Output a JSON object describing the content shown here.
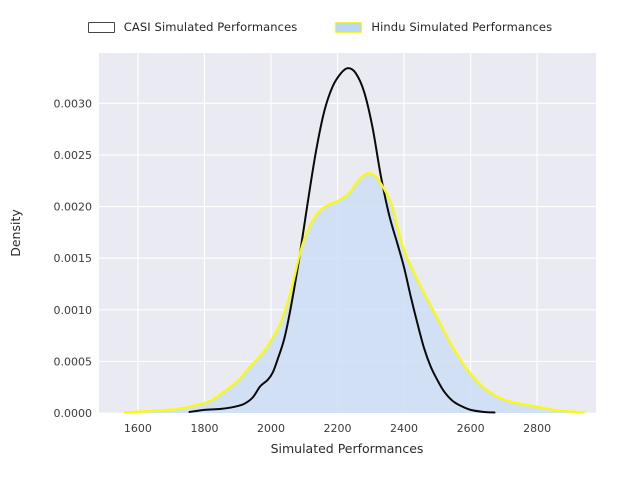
{
  "chart_data": {
    "type": "area",
    "subtype": "kde-density",
    "title": "",
    "xlabel": "Simulated Performances",
    "ylabel": "Density",
    "xlim": [
      1483,
      2977
    ],
    "ylim": [
      0,
      0.003487
    ],
    "x_ticks": [
      1600,
      1800,
      2000,
      2200,
      2400,
      2600,
      2800
    ],
    "y_ticks": [
      0.0,
      0.0005,
      0.001,
      0.0015,
      0.002,
      0.0025,
      0.003
    ],
    "grid": true,
    "legend_position": "top-outside",
    "series": [
      {
        "name": "CASI Simulated Performances",
        "type": "line",
        "line_color": "#0a0a0a",
        "fill_color": "none",
        "legend_swatch_fill": "#ffffff",
        "legend_swatch_border": "#454545",
        "points": [
          [
            1755,
            1e-05
          ],
          [
            1800,
            3e-05
          ],
          [
            1850,
            4e-05
          ],
          [
            1890,
            6e-05
          ],
          [
            1920,
            9e-05
          ],
          [
            1945,
            0.00015
          ],
          [
            1968,
            0.00026
          ],
          [
            1990,
            0.00032
          ],
          [
            2005,
            0.00039
          ],
          [
            2020,
            0.00052
          ],
          [
            2040,
            0.00072
          ],
          [
            2060,
            0.00103
          ],
          [
            2085,
            0.0015
          ],
          [
            2110,
            0.00203
          ],
          [
            2135,
            0.00253
          ],
          [
            2160,
            0.00292
          ],
          [
            2185,
            0.00316
          ],
          [
            2210,
            0.00329
          ],
          [
            2232,
            0.00334
          ],
          [
            2255,
            0.00329
          ],
          [
            2280,
            0.00311
          ],
          [
            2305,
            0.00277
          ],
          [
            2330,
            0.0023
          ],
          [
            2355,
            0.00192
          ],
          [
            2380,
            0.00164
          ],
          [
            2400,
            0.00141
          ],
          [
            2420,
            0.00113
          ],
          [
            2440,
            0.00087
          ],
          [
            2460,
            0.00063
          ],
          [
            2480,
            0.00045
          ],
          [
            2500,
            0.00032
          ],
          [
            2520,
            0.00021
          ],
          [
            2545,
            0.00012
          ],
          [
            2570,
            7e-05
          ],
          [
            2600,
            3e-05
          ],
          [
            2640,
            1e-05
          ],
          [
            2672,
            5e-06
          ]
        ]
      },
      {
        "name": "Hindu Simulated Performances",
        "type": "area",
        "line_color": "#fbfb09",
        "fill_color": "rgba(205,222,246,0.85)",
        "legend_swatch_fill": "#b9d8f7",
        "legend_swatch_border": "#f5f53c",
        "points": [
          [
            1560,
            5e-06
          ],
          [
            1640,
            2e-05
          ],
          [
            1720,
            4e-05
          ],
          [
            1780,
            8e-05
          ],
          [
            1820,
            0.00012
          ],
          [
            1860,
            0.00021
          ],
          [
            1900,
            0.00031
          ],
          [
            1940,
            0.00046
          ],
          [
            1975,
            0.00058
          ],
          [
            2000,
            0.0007
          ],
          [
            2030,
            0.00088
          ],
          [
            2060,
            0.00118
          ],
          [
            2090,
            0.00158
          ],
          [
            2115,
            0.0018
          ],
          [
            2145,
            0.00195
          ],
          [
            2175,
            0.00202
          ],
          [
            2205,
            0.00206
          ],
          [
            2235,
            0.00213
          ],
          [
            2262,
            0.00225
          ],
          [
            2290,
            0.00232
          ],
          [
            2315,
            0.00229
          ],
          [
            2340,
            0.00217
          ],
          [
            2365,
            0.002
          ],
          [
            2390,
            0.00168
          ],
          [
            2410,
            0.0015
          ],
          [
            2448,
            0.00124
          ],
          [
            2500,
            0.00092
          ],
          [
            2550,
            0.00062
          ],
          [
            2600,
            0.00038
          ],
          [
            2650,
            0.00022
          ],
          [
            2700,
            0.00013
          ],
          [
            2750,
            9e-05
          ],
          [
            2800,
            6e-05
          ],
          [
            2850,
            3e-05
          ],
          [
            2900,
            1.5e-05
          ],
          [
            2940,
            5e-06
          ]
        ]
      }
    ]
  },
  "colors": {
    "figure_background": "#ffffff",
    "plot_background": "#eaeaf2",
    "grid_line": "#ffffff",
    "tick_text": "#3c3c3c",
    "axis_label_text": "#2b2b2b"
  }
}
